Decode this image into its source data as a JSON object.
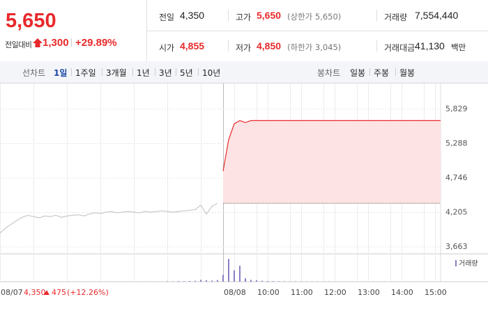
{
  "header": {
    "price": "5,650",
    "change_label": "전일대비",
    "change": "1,300",
    "rate": "+29.89%",
    "stats": [
      [
        {
          "label": "전일",
          "value": "4,350"
        },
        {
          "label": "고가",
          "value": "5,650",
          "note": "(상한가 5,650)"
        },
        {
          "label": "거래량",
          "value": "7,554,440"
        }
      ],
      [
        {
          "label": "시가",
          "value": "4,855"
        },
        {
          "label": "저가",
          "value": "4,850",
          "note": "(하한가 3,045)"
        },
        {
          "label": "거래대금",
          "value": "41,130",
          "note": "백만"
        }
      ]
    ]
  },
  "tabs": {
    "line_label": "선차트",
    "line_periods": [
      "1일",
      "1주일",
      "3개월",
      "1년",
      "3년",
      "5년",
      "10년"
    ],
    "selected": 0,
    "candle_label": "봉차트",
    "candle_periods": [
      "일봉",
      "주봉",
      "월봉"
    ]
  },
  "chart_data": {
    "type": "line",
    "color": "#e8292b",
    "prev_color": "#c8c8c8",
    "area_color": "#fde3e3",
    "categories": [
      "08/07",
      null,
      null,
      null,
      null,
      null,
      null,
      null,
      null,
      null,
      null,
      null,
      null,
      null,
      null,
      null,
      null,
      null,
      null,
      null,
      null,
      null,
      null,
      null,
      null,
      null,
      null,
      null,
      null,
      null,
      null,
      null,
      null,
      null,
      null,
      null,
      null,
      null,
      null,
      null,
      "08/08",
      null,
      null,
      null,
      null,
      null,
      "10:00",
      null,
      null,
      null,
      null,
      null,
      "11:00",
      null,
      null,
      null,
      null,
      null,
      "12:00",
      null,
      null,
      null,
      null,
      null,
      "13:00",
      null,
      null,
      null,
      null,
      null,
      "14:00",
      null,
      null,
      null,
      null,
      null,
      "15:00",
      null,
      null,
      null
    ],
    "values": [
      3880,
      3960,
      4020,
      4080,
      4130,
      4160,
      4140,
      4120,
      4150,
      4140,
      4160,
      4130,
      4150,
      4160,
      4170,
      4150,
      4180,
      4200,
      4190,
      4210,
      4220,
      4200,
      4210,
      4220,
      4210,
      4200,
      4220,
      4210,
      4220,
      4230,
      4220,
      4210,
      4220,
      4230,
      4240,
      4250,
      4320,
      4180,
      4300,
      4350,
      4855,
      5350,
      5600,
      5650,
      5620,
      5650,
      5650,
      5650,
      5650,
      5650,
      5650,
      5650,
      5650,
      5650,
      5650,
      5650,
      5650,
      5650,
      5650,
      5650,
      5650,
      5650,
      5650,
      5650,
      5650,
      5650,
      5650,
      5650,
      5650,
      5650,
      5650,
      5650,
      5650,
      5650,
      5650,
      5650,
      5650,
      5650,
      5650,
      5650
    ],
    "split_index": 40,
    "baseline": 4350,
    "ylim": [
      3554,
      6234
    ],
    "yticks": [
      {
        "value": 3663,
        "label": "3,663"
      },
      {
        "value": 4205,
        "label": "4,205"
      },
      {
        "value": 4746,
        "label": "4,746"
      },
      {
        "value": 5288,
        "label": "5,288"
      },
      {
        "value": 5829,
        "label": "5,829"
      }
    ],
    "volume_label": "거래량",
    "volume_color": "#8a7fc4",
    "volume_ylim": [
      0,
      1100000
    ],
    "volume": [
      5000,
      4000,
      6000,
      5000,
      4000,
      3000,
      3000,
      4000,
      3000,
      3000,
      4000,
      3000,
      3000,
      3000,
      4000,
      3000,
      5000,
      4000,
      3000,
      4000,
      5000,
      3000,
      4000,
      3000,
      3000,
      4000,
      5000,
      3000,
      4000,
      6000,
      20000,
      15000,
      25000,
      20000,
      30000,
      40000,
      80000,
      60000,
      50000,
      70000,
      300000,
      1000000,
      500000,
      700000,
      150000,
      80000,
      60000,
      40000,
      30000,
      25000,
      20000,
      20000,
      15000,
      15000,
      12000,
      10000,
      10000,
      8000,
      8000,
      8000,
      6000,
      6000,
      5000,
      5000,
      5000,
      4000,
      4000,
      4000,
      4000,
      3000,
      3000,
      3000,
      3000,
      3000,
      3000,
      3000,
      3000,
      3000,
      3000,
      3000
    ],
    "summary": {
      "close": "4,350",
      "change": "475",
      "rate": "(+12.26%)"
    }
  }
}
